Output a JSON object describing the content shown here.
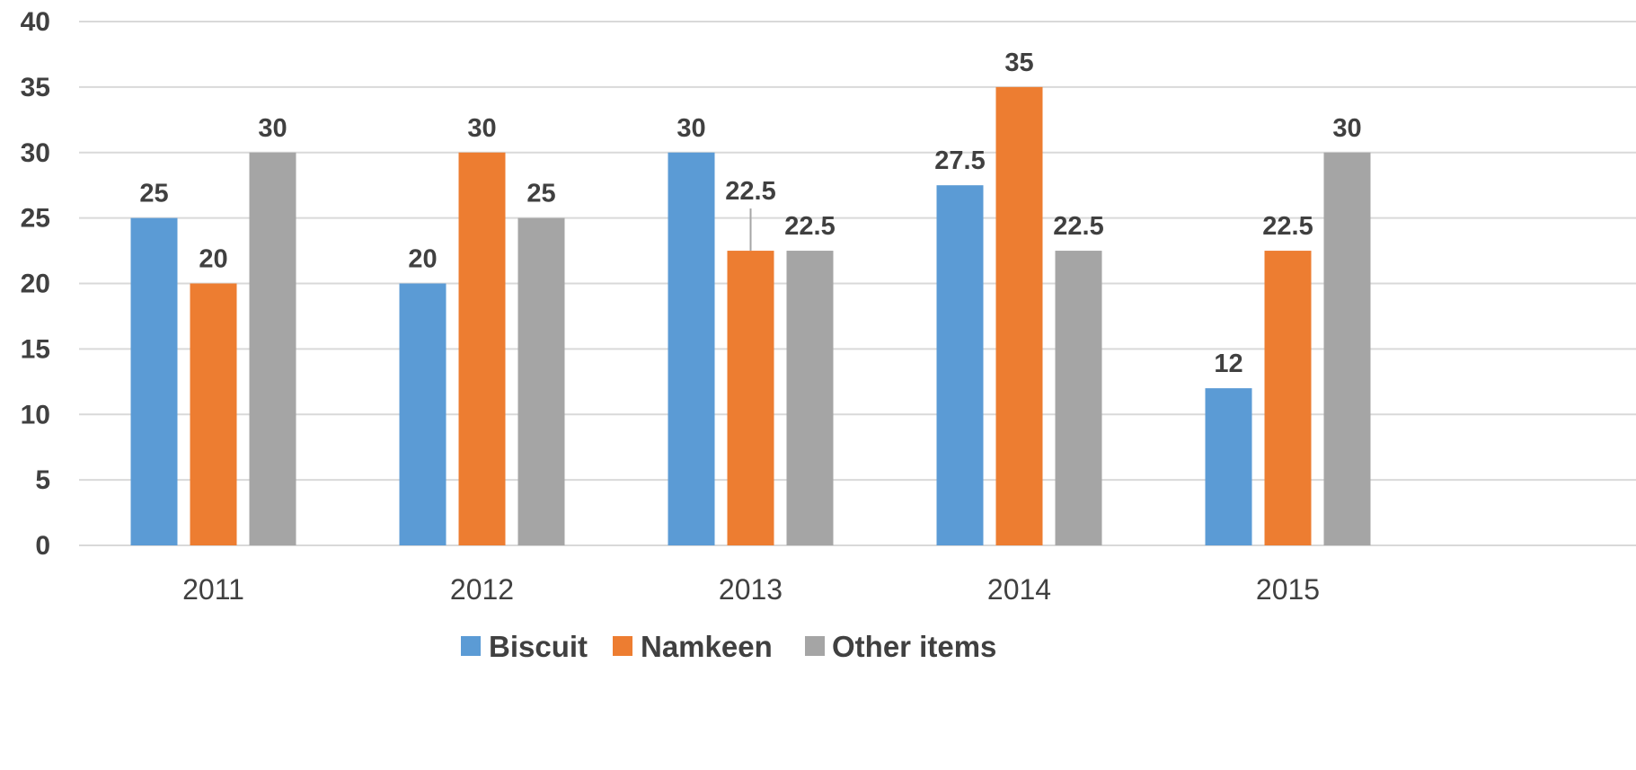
{
  "chart_data": {
    "type": "bar",
    "title": "",
    "xlabel": "",
    "ylabel": "",
    "categories": [
      "2011",
      "2012",
      "2013",
      "2014",
      "2015"
    ],
    "series": [
      {
        "name": "Biscuit",
        "color": "#5b9bd5",
        "values": [
          25,
          20,
          30,
          27.5,
          12
        ]
      },
      {
        "name": "Namkeen",
        "color": "#ed7d31",
        "values": [
          20,
          30,
          22.5,
          35,
          22.5
        ]
      },
      {
        "name": "Other items",
        "color": "#a5a5a5",
        "values": [
          30,
          25,
          22.5,
          22.5,
          30
        ]
      }
    ],
    "ylim": [
      0,
      40
    ],
    "yticks": [
      0,
      5,
      10,
      15,
      20,
      25,
      30,
      35,
      40
    ],
    "grid": true,
    "legend_position": "bottom",
    "data_labels": true
  }
}
